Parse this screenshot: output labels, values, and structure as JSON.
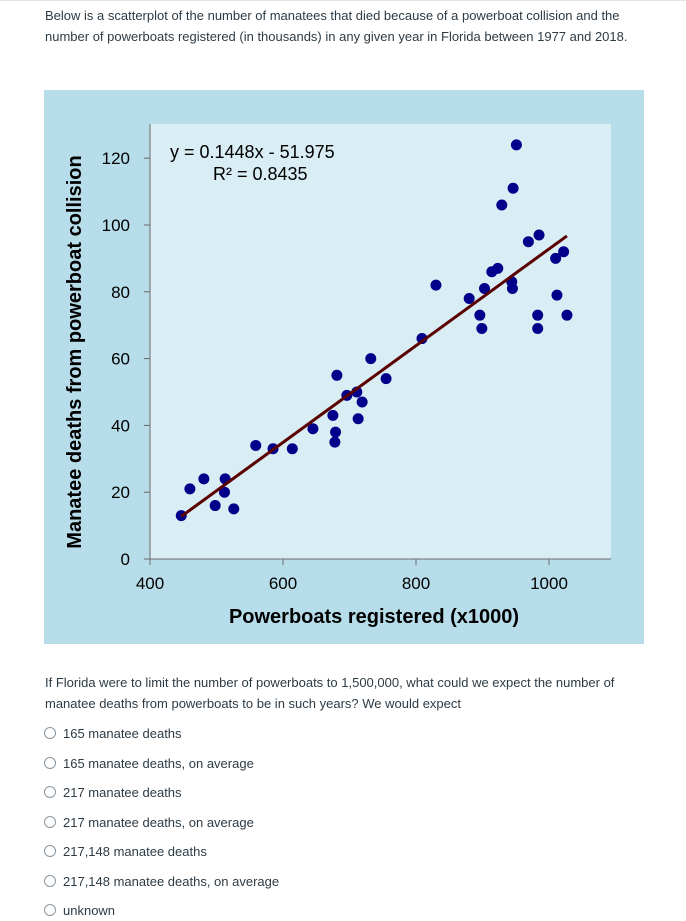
{
  "intro_text": "Below is a scatterplot of the number of manatees that died because of a powerboat collision and the number of powerboats registered (in thousands) in any given year in Florida between 1977 and 2018.",
  "question_text": "If Florida were to limit the number of powerboats to 1,500,000, what could we expect the number of manatee deaths from powerboats to be in such years? We would expect",
  "options": [
    {
      "label": "165 manatee deaths"
    },
    {
      "label": "165 manatee deaths, on average"
    },
    {
      "label": "217 manatee deaths"
    },
    {
      "label": "217 manatee deaths, on average"
    },
    {
      "label": "217,148 manatee deaths"
    },
    {
      "label": "217,148 manatee deaths, on average"
    },
    {
      "label": "unknown"
    }
  ],
  "chart_data": {
    "type": "scatter",
    "xlabel": "Powerboats registered (x1000)",
    "ylabel": "Manatee deaths from powerboat collision",
    "xlim": [
      400,
      1100
    ],
    "ylim": [
      0,
      130
    ],
    "x_ticks": [
      400,
      600,
      800,
      1000
    ],
    "y_ticks": [
      0,
      20,
      40,
      60,
      80,
      100,
      120
    ],
    "equation_lines": [
      "y = 0.1448x - 51.975",
      "R² = 0.8435"
    ],
    "trendline": {
      "slope": 0.1448,
      "intercept": -51.975,
      "x_range": [
        447,
        1027
      ]
    },
    "points": [
      {
        "x": 447,
        "y": 13
      },
      {
        "x": 460,
        "y": 21
      },
      {
        "x": 481,
        "y": 24
      },
      {
        "x": 498,
        "y": 16
      },
      {
        "x": 513,
        "y": 24
      },
      {
        "x": 512,
        "y": 20
      },
      {
        "x": 526,
        "y": 15
      },
      {
        "x": 559,
        "y": 34
      },
      {
        "x": 585,
        "y": 33
      },
      {
        "x": 614,
        "y": 33
      },
      {
        "x": 645,
        "y": 39
      },
      {
        "x": 675,
        "y": 43
      },
      {
        "x": 711,
        "y": 50
      },
      {
        "x": 719,
        "y": 47
      },
      {
        "x": 681,
        "y": 55
      },
      {
        "x": 679,
        "y": 38
      },
      {
        "x": 678,
        "y": 35
      },
      {
        "x": 696,
        "y": 49
      },
      {
        "x": 713,
        "y": 42
      },
      {
        "x": 732,
        "y": 60
      },
      {
        "x": 755,
        "y": 54
      },
      {
        "x": 809,
        "y": 66
      },
      {
        "x": 830,
        "y": 82
      },
      {
        "x": 880,
        "y": 78
      },
      {
        "x": 896,
        "y": 73
      },
      {
        "x": 899,
        "y": 69
      },
      {
        "x": 903,
        "y": 81
      },
      {
        "x": 914,
        "y": 86
      },
      {
        "x": 923,
        "y": 87
      },
      {
        "x": 929,
        "y": 106
      },
      {
        "x": 944,
        "y": 83
      },
      {
        "x": 945,
        "y": 81
      },
      {
        "x": 946,
        "y": 111
      },
      {
        "x": 951,
        "y": 124
      },
      {
        "x": 969,
        "y": 95
      },
      {
        "x": 985,
        "y": 97
      },
      {
        "x": 983,
        "y": 73
      },
      {
        "x": 983,
        "y": 69
      },
      {
        "x": 1010,
        "y": 90
      },
      {
        "x": 1012,
        "y": 79
      },
      {
        "x": 1022,
        "y": 92
      },
      {
        "x": 1027,
        "y": 73
      }
    ],
    "colors": {
      "outer_background": "#b6dde9",
      "plot_background": "#d9edf4",
      "point": "#00008b",
      "trendline": "#5a0000"
    }
  }
}
